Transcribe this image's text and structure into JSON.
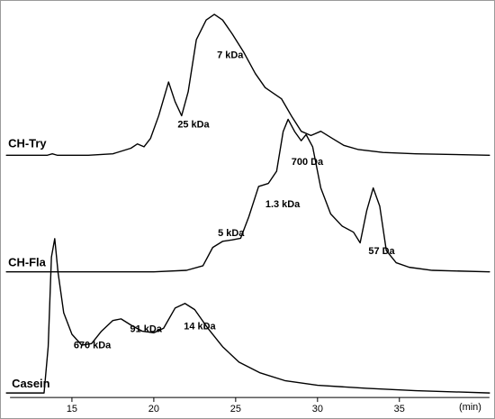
{
  "chart_data": {
    "type": "line",
    "xlabel": "(min)",
    "xlim": [
      11.0,
      40.5
    ],
    "xticks": [
      15,
      20,
      25,
      30,
      35
    ],
    "series": [
      {
        "name": "CH-Try",
        "points": [
          [
            11.0,
            0.0
          ],
          [
            13.5,
            0.0
          ],
          [
            13.8,
            0.01
          ],
          [
            14.1,
            0.0
          ],
          [
            16,
            0.0
          ],
          [
            17.5,
            0.01
          ],
          [
            18.6,
            0.05
          ],
          [
            19.0,
            0.08
          ],
          [
            19.4,
            0.06
          ],
          [
            19.8,
            0.12
          ],
          [
            20.3,
            0.28
          ],
          [
            20.9,
            0.52
          ],
          [
            21.3,
            0.38
          ],
          [
            21.7,
            0.28
          ],
          [
            22.1,
            0.45
          ],
          [
            22.6,
            0.82
          ],
          [
            23.2,
            0.96
          ],
          [
            23.7,
            1.0
          ],
          [
            24.2,
            0.96
          ],
          [
            24.8,
            0.86
          ],
          [
            25.5,
            0.73
          ],
          [
            26.2,
            0.58
          ],
          [
            26.8,
            0.48
          ],
          [
            27.3,
            0.44
          ],
          [
            27.8,
            0.4
          ],
          [
            28.4,
            0.28
          ],
          [
            29.0,
            0.17
          ],
          [
            29.6,
            0.14
          ],
          [
            30.2,
            0.17
          ],
          [
            30.9,
            0.12
          ],
          [
            31.6,
            0.07
          ],
          [
            32.5,
            0.04
          ],
          [
            34,
            0.02
          ],
          [
            36,
            0.01
          ],
          [
            40.5,
            0.0
          ]
        ]
      },
      {
        "name": "CH-Fla",
        "points": [
          [
            11.0,
            0.0
          ],
          [
            20,
            0.0
          ],
          [
            22,
            0.01
          ],
          [
            23.0,
            0.04
          ],
          [
            23.6,
            0.16
          ],
          [
            24.2,
            0.2
          ],
          [
            24.8,
            0.21
          ],
          [
            25.3,
            0.22
          ],
          [
            25.8,
            0.36
          ],
          [
            26.4,
            0.56
          ],
          [
            27.0,
            0.58
          ],
          [
            27.5,
            0.66
          ],
          [
            27.9,
            0.92
          ],
          [
            28.2,
            1.0
          ],
          [
            28.6,
            0.92
          ],
          [
            29.0,
            0.86
          ],
          [
            29.3,
            0.9
          ],
          [
            29.7,
            0.82
          ],
          [
            30.2,
            0.55
          ],
          [
            30.8,
            0.38
          ],
          [
            31.5,
            0.3
          ],
          [
            32.2,
            0.26
          ],
          [
            32.6,
            0.19
          ],
          [
            33.0,
            0.4
          ],
          [
            33.4,
            0.55
          ],
          [
            33.8,
            0.43
          ],
          [
            34.2,
            0.14
          ],
          [
            34.8,
            0.06
          ],
          [
            35.6,
            0.03
          ],
          [
            37,
            0.01
          ],
          [
            40.5,
            0.0
          ]
        ]
      },
      {
        "name": "Casein",
        "points": [
          [
            11.0,
            0.0
          ],
          [
            13.3,
            0.0
          ],
          [
            13.55,
            0.3
          ],
          [
            13.75,
            0.88
          ],
          [
            13.95,
            1.0
          ],
          [
            14.15,
            0.78
          ],
          [
            14.5,
            0.52
          ],
          [
            15.0,
            0.38
          ],
          [
            15.6,
            0.31
          ],
          [
            16.2,
            0.32
          ],
          [
            16.8,
            0.4
          ],
          [
            17.5,
            0.47
          ],
          [
            18.0,
            0.48
          ],
          [
            18.6,
            0.44
          ],
          [
            19.3,
            0.4
          ],
          [
            20.0,
            0.39
          ],
          [
            20.6,
            0.42
          ],
          [
            21.3,
            0.55
          ],
          [
            21.9,
            0.58
          ],
          [
            22.5,
            0.54
          ],
          [
            23.3,
            0.42
          ],
          [
            24.2,
            0.3
          ],
          [
            25.2,
            0.2
          ],
          [
            26.5,
            0.13
          ],
          [
            28,
            0.08
          ],
          [
            30,
            0.05
          ],
          [
            33,
            0.03
          ],
          [
            36,
            0.015
          ],
          [
            40.5,
            0.0
          ]
        ]
      }
    ],
    "annotations": [
      {
        "series": "CH-Try",
        "text": "7 kDa"
      },
      {
        "series": "CH-Try",
        "text": "25 kDa"
      },
      {
        "series": "CH-Fla",
        "text": "700 Da"
      },
      {
        "series": "CH-Fla",
        "text": "1.3 kDa"
      },
      {
        "series": "CH-Fla",
        "text": "5 kDa"
      },
      {
        "series": "CH-Fla",
        "text": "57 Da"
      },
      {
        "series": "Casein",
        "text": "670 kDa"
      },
      {
        "series": "Casein",
        "text": "91 kDa"
      },
      {
        "series": "Casein",
        "text": "14 kDa"
      }
    ]
  }
}
